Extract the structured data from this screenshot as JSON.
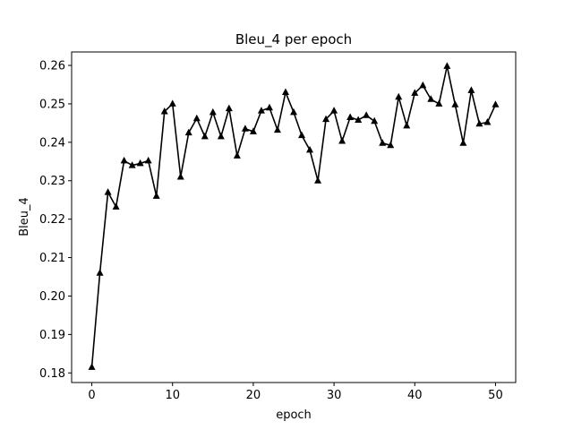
{
  "chart_data": {
    "type": "line",
    "title": "Bleu_4 per epoch",
    "xlabel": "epoch",
    "ylabel": "Bleu_4",
    "xlim": [
      -2.5,
      52.5
    ],
    "ylim": [
      0.1775,
      0.2635
    ],
    "xticks": [
      0,
      10,
      20,
      30,
      40,
      50
    ],
    "yticks": [
      0.18,
      0.19,
      0.2,
      0.21,
      0.22,
      0.23,
      0.24,
      0.25,
      0.26
    ],
    "ytick_labels": [
      "0.18",
      "0.19",
      "0.20",
      "0.21",
      "0.22",
      "0.23",
      "0.24",
      "0.25",
      "0.26"
    ],
    "xtick_labels": [
      "0",
      "10",
      "20",
      "30",
      "40",
      "50"
    ],
    "grid": false,
    "legend": "none",
    "marker": "triangle-up",
    "line_color": "#000000",
    "series": [
      {
        "x": [
          0,
          1,
          2,
          3,
          4,
          5,
          6,
          7,
          8,
          9,
          10,
          11,
          12,
          13,
          14,
          15,
          16,
          17,
          18,
          19,
          20,
          21,
          22,
          23,
          24,
          25,
          26,
          27,
          28,
          29,
          30,
          31,
          32,
          33,
          34,
          35,
          36,
          37,
          38,
          39,
          40,
          41,
          42,
          43,
          44,
          45,
          46,
          47,
          48,
          49,
          50
        ],
        "values": [
          0.1815,
          0.206,
          0.227,
          0.2232,
          0.2352,
          0.234,
          0.2345,
          0.2352,
          0.226,
          0.248,
          0.25,
          0.231,
          0.2425,
          0.2462,
          0.2415,
          0.2478,
          0.2415,
          0.2488,
          0.2365,
          0.2435,
          0.2428,
          0.2482,
          0.249,
          0.2432,
          0.253,
          0.2478,
          0.2418,
          0.238,
          0.23,
          0.246,
          0.2482,
          0.2403,
          0.2465,
          0.2458,
          0.247,
          0.2455,
          0.2398,
          0.2392,
          0.2518,
          0.2443,
          0.2528,
          0.2548,
          0.2512,
          0.25,
          0.2598,
          0.2498,
          0.2398,
          0.2535,
          0.2448,
          0.2452,
          0.2498
        ]
      }
    ]
  }
}
